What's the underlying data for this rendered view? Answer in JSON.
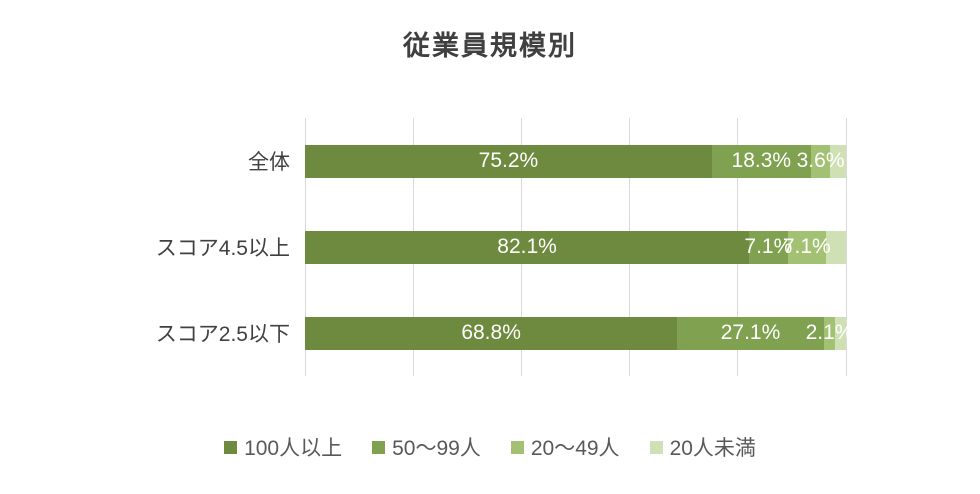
{
  "chart_data": {
    "type": "bar",
    "orientation": "horizontal",
    "stacked": true,
    "title": "従業員規模別",
    "categories": [
      "全体",
      "スコア4.5以上",
      "スコア2.5以下"
    ],
    "series": [
      {
        "name": "100人以上",
        "values": [
          75.2,
          82.1,
          68.8
        ],
        "labels_visible": true
      },
      {
        "name": "50〜99人",
        "values": [
          18.3,
          7.1,
          27.1
        ],
        "labels_visible": true
      },
      {
        "name": "20〜49人",
        "values": [
          3.6,
          7.1,
          2.1
        ],
        "labels_visible": true
      },
      {
        "name": "20人未満",
        "values": [
          2.9,
          3.7,
          2.0
        ],
        "labels_visible": false
      }
    ],
    "colors": [
      "#6d8a3e",
      "#7fa150",
      "#a2c173",
      "#cfe0b4"
    ],
    "xlim": [
      0,
      100
    ],
    "gridlines": [
      0,
      20,
      40,
      60,
      80,
      100
    ],
    "grid_color": "#d9d9d9",
    "data_label_format": "percent",
    "data_label_color": "#ffffff",
    "legend_position": "bottom",
    "text_color": "#404040",
    "legend_text_color": "#595959"
  }
}
